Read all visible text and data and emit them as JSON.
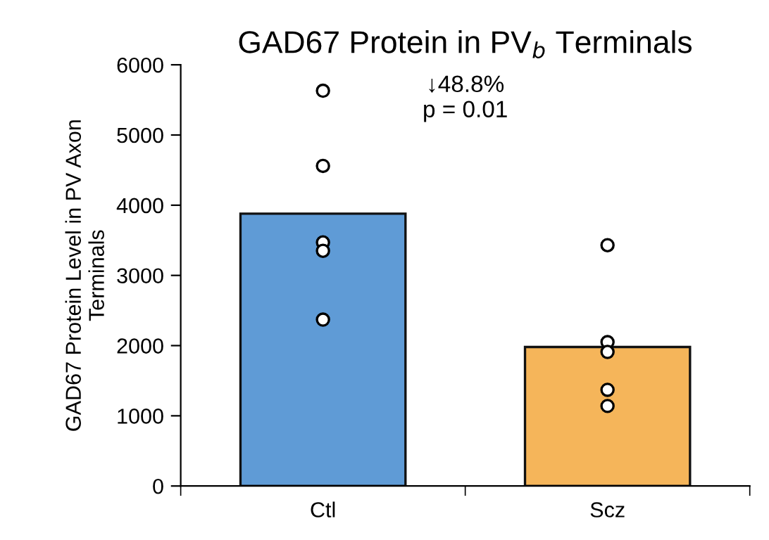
{
  "chart_data": {
    "type": "bar",
    "title": "GAD67 Protein in PV$_{b}$ Terminals",
    "ylabel": "GAD67 Protein Level in PV Axon\nTerminals",
    "categories": [
      "Ctl",
      "Scz"
    ],
    "series": [
      {
        "colors": [
          "#5f9bd6",
          "#f5b55a"
        ],
        "values": [
          3880,
          1980
        ]
      },
      {
        "type": "scatter",
        "color": "#000000",
        "x": [
          "Ctl",
          "Ctl",
          "Ctl",
          "Ctl",
          "Ctl",
          "Scz",
          "Scz",
          "Scz",
          "Scz",
          "Scz"
        ],
        "values": [
          5630,
          4560,
          3470,
          3350,
          2370,
          3430,
          2050,
          1910,
          1370,
          1140
        ]
      }
    ],
    "marker": "circle",
    "annotations": [
      "↓48.8%\np = 0.01"
    ],
    "ylim": [
      0,
      6000
    ],
    "yticks": [
      0,
      1000,
      2000,
      3000,
      4000,
      5000,
      6000
    ],
    "grid": false,
    "legend": false
  }
}
